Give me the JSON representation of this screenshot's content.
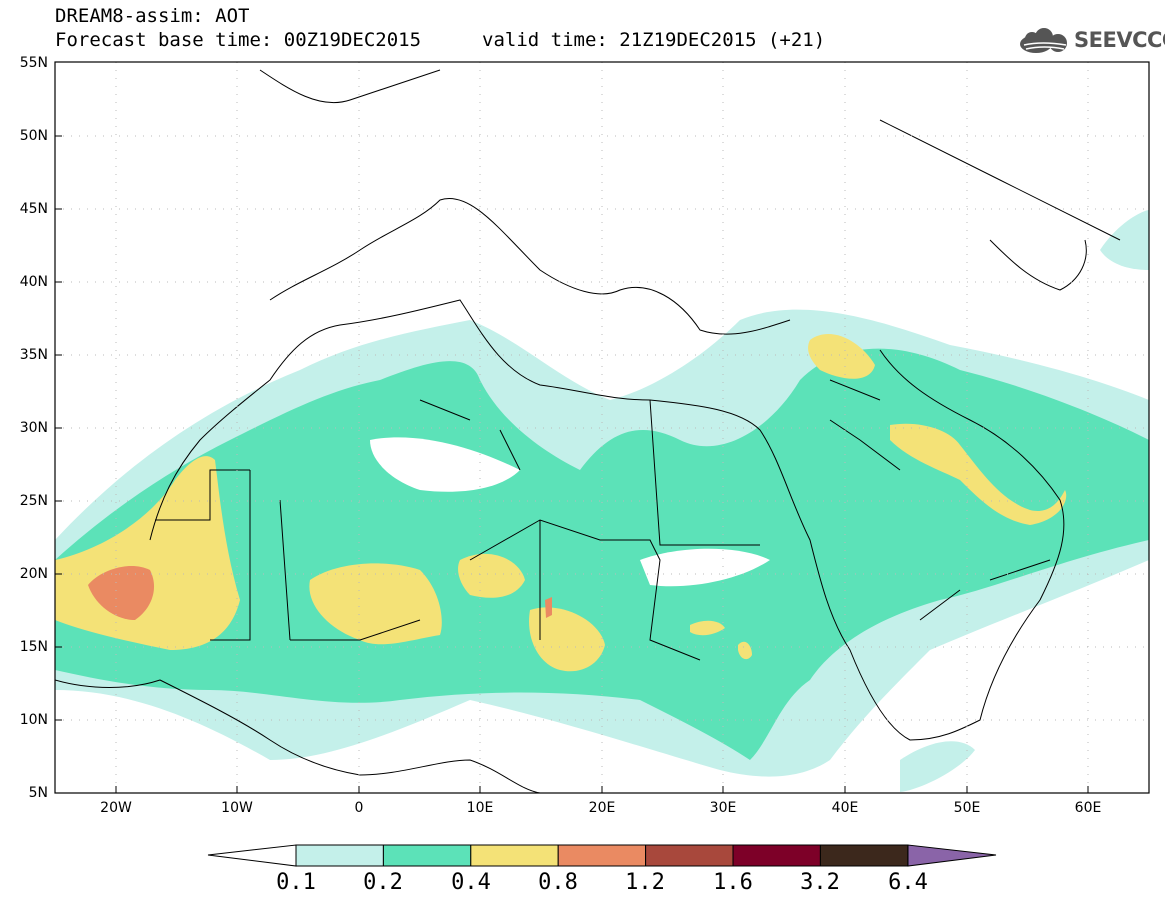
{
  "header": {
    "line1": "DREAM8-assim: AOT",
    "line2": "Forecast base time: 00Z19DEC2015",
    "valid": "valid time: 21Z19DEC2015 (+21)"
  },
  "logo": {
    "text": "SEEVCCC",
    "icon": "cloud-icon"
  },
  "axes": {
    "lat_labels": [
      "55N",
      "50N",
      "45N",
      "40N",
      "35N",
      "30N",
      "25N",
      "20N",
      "15N",
      "10N",
      "5N"
    ],
    "lon_labels": [
      "20W",
      "10W",
      "0",
      "10E",
      "20E",
      "30E",
      "40E",
      "50E",
      "60E"
    ]
  },
  "colorbar": {
    "labels": [
      "0.1",
      "0.2",
      "0.4",
      "0.8",
      "1.2",
      "1.6",
      "3.2",
      "6.4"
    ],
    "colors": [
      "#c4f0ea",
      "#5ce2b8",
      "#f4e277",
      "#ea8a62",
      "#a8483c",
      "#7d0028",
      "#3c281c",
      "#8a64a8"
    ]
  }
}
